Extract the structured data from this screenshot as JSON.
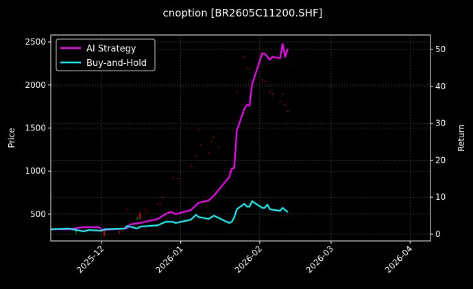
{
  "chart_data": {
    "type": "line",
    "title": "cnoption [BR2605C11200.SHF]",
    "ylabel": "Price",
    "y2label": "Return",
    "xlim": [
      "2025-11-11",
      "2026-04-09"
    ],
    "ylim": [
      189,
      2580
    ],
    "y2lim": [
      -1.86,
      53.9
    ],
    "x_ticks": [
      "2025-12",
      "2026-01",
      "2026-02",
      "2026-03",
      "2026-04"
    ],
    "y_ticks": [
      500,
      1000,
      1500,
      2000,
      2500
    ],
    "y2_ticks": [
      0,
      10,
      20,
      30,
      40,
      50
    ],
    "grid": true,
    "legend_position": "top-left",
    "background": "#000000",
    "series": [
      {
        "name": "AI Strategy",
        "axis": "right",
        "color": "#ff00ff",
        "x": [
          "2025-11-11",
          "2025-11-18",
          "2025-11-24",
          "2025-11-30",
          "2025-12-01",
          "2025-12-11",
          "2025-12-12",
          "2025-12-16",
          "2025-12-18",
          "2025-12-23",
          "2025-12-26",
          "2025-12-28",
          "2025-12-30",
          "2026-01-05",
          "2026-01-08",
          "2026-01-12",
          "2026-01-14",
          "2026-01-20",
          "2026-01-21",
          "2026-01-22",
          "2026-01-23",
          "2026-01-26",
          "2026-01-27",
          "2026-01-28",
          "2026-01-29",
          "2026-02-02",
          "2026-02-03",
          "2026-02-05",
          "2026-02-06",
          "2026-02-09",
          "2026-02-10",
          "2026-02-11",
          "2026-02-12"
        ],
        "values": [
          1.3,
          1.3,
          1.9,
          1.9,
          1.1,
          1.5,
          2.6,
          3.0,
          3.3,
          4.1,
          5.4,
          6.0,
          5.4,
          6.5,
          8.5,
          9.1,
          10.4,
          15.4,
          17.7,
          17.9,
          28.0,
          34.0,
          35.0,
          34.8,
          40.5,
          49.0,
          48.8,
          47.2,
          48.0,
          47.6,
          51.5,
          48.0,
          50.2
        ]
      },
      {
        "name": "Buy-and-Hold",
        "axis": "right",
        "color": "#00ffff",
        "x": [
          "2025-11-11",
          "2025-11-18",
          "2025-11-24",
          "2025-11-26",
          "2025-12-01",
          "2025-12-02",
          "2025-12-10",
          "2025-12-11",
          "2025-12-15",
          "2025-12-16",
          "2025-12-23",
          "2025-12-26",
          "2025-12-29",
          "2025-12-30",
          "2026-01-05",
          "2026-01-07",
          "2026-01-08",
          "2026-01-12",
          "2026-01-14",
          "2026-01-20",
          "2026-01-21",
          "2026-01-22",
          "2026-01-23",
          "2026-01-26",
          "2026-01-27",
          "2026-01-28",
          "2026-01-29",
          "2026-02-02",
          "2026-02-03",
          "2026-02-04",
          "2026-02-05",
          "2026-02-09",
          "2026-02-10",
          "2026-02-12"
        ],
        "values": [
          1.3,
          1.5,
          0.75,
          1.1,
          0.9,
          1.3,
          1.5,
          2.2,
          1.5,
          2.0,
          2.4,
          3.3,
          3.3,
          3.0,
          3.9,
          5.2,
          4.6,
          4.1,
          5.0,
          3.0,
          3.3,
          4.5,
          6.7,
          8.2,
          7.4,
          7.4,
          8.9,
          7.1,
          7.1,
          8.0,
          6.7,
          6.3,
          7.1,
          5.9
        ]
      }
    ],
    "candles": {
      "axis": "left",
      "up_color": "#00aa00",
      "down_color": "#ff0000",
      "data": [
        [
          "2025-11-19",
          335,
          345,
          320,
          325
        ],
        [
          "2025-11-21",
          290,
          350,
          260,
          320
        ],
        [
          "2025-12-02",
          320,
          320,
          240,
          250
        ],
        [
          "2025-12-08",
          300,
          310,
          270,
          285
        ],
        [
          "2025-12-11",
          560,
          565,
          550,
          555
        ],
        [
          "2025-12-15",
          440,
          470,
          440,
          460
        ],
        [
          "2025-12-16",
          520,
          520,
          440,
          440
        ],
        [
          "2025-12-18",
          555,
          560,
          545,
          550
        ],
        [
          "2025-12-19",
          535,
          540,
          525,
          530
        ],
        [
          "2025-12-23",
          625,
          630,
          615,
          620
        ],
        [
          "2025-12-24",
          615,
          620,
          605,
          610
        ],
        [
          "2025-12-25",
          695,
          700,
          685,
          690
        ],
        [
          "2025-12-29",
          925,
          930,
          915,
          920
        ],
        [
          "2025-12-31",
          915,
          920,
          905,
          910
        ],
        [
          "2026-01-05",
          1070,
          1075,
          1060,
          1065
        ],
        [
          "2026-01-07",
          1175,
          1180,
          1165,
          1170
        ],
        [
          "2026-01-08",
          1485,
          1490,
          1475,
          1480
        ],
        [
          "2026-01-09",
          1310,
          1315,
          1300,
          1305
        ],
        [
          "2026-01-12",
          1215,
          1220,
          1205,
          1210
        ],
        [
          "2026-01-13",
          1345,
          1350,
          1335,
          1340
        ],
        [
          "2026-01-14",
          1395,
          1400,
          1385,
          1390
        ],
        [
          "2026-01-16",
          1280,
          1285,
          1270,
          1275
        ],
        [
          "2026-01-23",
          1925,
          1930,
          1915,
          1920
        ],
        [
          "2026-01-26",
          2325,
          2330,
          2315,
          2320
        ],
        [
          "2026-01-27",
          2195,
          2200,
          2185,
          2190
        ],
        [
          "2026-01-28",
          2185,
          2190,
          2175,
          2180
        ],
        [
          "2026-02-02",
          2065,
          2070,
          2055,
          2060
        ],
        [
          "2026-02-03",
          2045,
          2050,
          2035,
          2040
        ],
        [
          "2026-02-05",
          1925,
          1930,
          1915,
          1920
        ],
        [
          "2026-02-06",
          1900,
          1905,
          1890,
          1895
        ],
        [
          "2026-02-09",
          1810,
          1815,
          1800,
          1805
        ],
        [
          "2026-02-10",
          1900,
          1905,
          1890,
          1895
        ],
        [
          "2026-02-11",
          1770,
          1775,
          1760,
          1765
        ],
        [
          "2026-02-12",
          1695,
          1700,
          1685,
          1690
        ]
      ]
    }
  }
}
